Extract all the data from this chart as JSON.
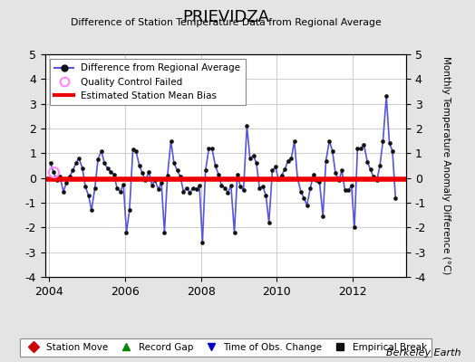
{
  "title": "PRIEVIDZA",
  "subtitle": "Difference of Station Temperature Data from Regional Average",
  "ylabel": "Monthly Temperature Anomaly Difference (°C)",
  "credit": "Berkeley Earth",
  "ylim": [
    -4,
    5
  ],
  "xlim": [
    2003.9,
    2013.4
  ],
  "yticks": [
    -4,
    -3,
    -2,
    -1,
    0,
    1,
    2,
    3,
    4,
    5
  ],
  "xticks": [
    2004,
    2006,
    2008,
    2010,
    2012
  ],
  "bias_value": -0.05,
  "line_color": "#5555dd",
  "marker_color": "#111111",
  "bias_color": "#ee0000",
  "qc_color": "#ff88ff",
  "background_color": "#e4e4e4",
  "plot_bg_color": "#ffffff",
  "grid_color": "#cccccc",
  "data": [
    [
      2004.04,
      0.6
    ],
    [
      2004.12,
      0.25
    ],
    [
      2004.21,
      -0.1
    ],
    [
      2004.29,
      0.05
    ],
    [
      2004.38,
      -0.55
    ],
    [
      2004.46,
      -0.2
    ],
    [
      2004.54,
      0.05
    ],
    [
      2004.63,
      0.3
    ],
    [
      2004.71,
      0.6
    ],
    [
      2004.79,
      0.8
    ],
    [
      2004.88,
      0.4
    ],
    [
      2004.96,
      -0.35
    ],
    [
      2005.04,
      -0.7
    ],
    [
      2005.12,
      -1.3
    ],
    [
      2005.21,
      -0.4
    ],
    [
      2005.29,
      0.75
    ],
    [
      2005.38,
      1.1
    ],
    [
      2005.46,
      0.6
    ],
    [
      2005.54,
      0.4
    ],
    [
      2005.63,
      0.25
    ],
    [
      2005.71,
      0.15
    ],
    [
      2005.79,
      -0.4
    ],
    [
      2005.88,
      -0.55
    ],
    [
      2005.96,
      -0.25
    ],
    [
      2006.04,
      -2.2
    ],
    [
      2006.12,
      -1.3
    ],
    [
      2006.21,
      1.15
    ],
    [
      2006.29,
      1.1
    ],
    [
      2006.38,
      0.5
    ],
    [
      2006.46,
      0.2
    ],
    [
      2006.54,
      -0.1
    ],
    [
      2006.63,
      0.25
    ],
    [
      2006.71,
      -0.3
    ],
    [
      2006.79,
      -0.1
    ],
    [
      2006.88,
      -0.45
    ],
    [
      2006.96,
      -0.2
    ],
    [
      2007.04,
      -2.2
    ],
    [
      2007.12,
      0.1
    ],
    [
      2007.21,
      1.5
    ],
    [
      2007.29,
      0.6
    ],
    [
      2007.38,
      0.3
    ],
    [
      2007.46,
      0.05
    ],
    [
      2007.54,
      -0.55
    ],
    [
      2007.63,
      -0.4
    ],
    [
      2007.71,
      -0.6
    ],
    [
      2007.79,
      -0.4
    ],
    [
      2007.88,
      -0.45
    ],
    [
      2007.96,
      -0.3
    ],
    [
      2008.04,
      -2.6
    ],
    [
      2008.12,
      0.3
    ],
    [
      2008.21,
      1.2
    ],
    [
      2008.29,
      1.2
    ],
    [
      2008.38,
      0.5
    ],
    [
      2008.46,
      0.15
    ],
    [
      2008.54,
      -0.3
    ],
    [
      2008.63,
      -0.4
    ],
    [
      2008.71,
      -0.6
    ],
    [
      2008.79,
      -0.3
    ],
    [
      2008.88,
      -2.2
    ],
    [
      2008.96,
      0.15
    ],
    [
      2009.04,
      -0.35
    ],
    [
      2009.12,
      -0.5
    ],
    [
      2009.21,
      2.1
    ],
    [
      2009.29,
      0.8
    ],
    [
      2009.38,
      0.9
    ],
    [
      2009.46,
      0.6
    ],
    [
      2009.54,
      -0.4
    ],
    [
      2009.63,
      -0.35
    ],
    [
      2009.71,
      -0.7
    ],
    [
      2009.79,
      -1.8
    ],
    [
      2009.88,
      0.3
    ],
    [
      2009.96,
      0.45
    ],
    [
      2010.04,
      -0.05
    ],
    [
      2010.12,
      0.1
    ],
    [
      2010.21,
      0.35
    ],
    [
      2010.29,
      0.7
    ],
    [
      2010.38,
      0.8
    ],
    [
      2010.46,
      1.5
    ],
    [
      2010.54,
      0.0
    ],
    [
      2010.63,
      -0.55
    ],
    [
      2010.71,
      -0.8
    ],
    [
      2010.79,
      -1.1
    ],
    [
      2010.88,
      -0.4
    ],
    [
      2010.96,
      0.15
    ],
    [
      2011.04,
      -0.1
    ],
    [
      2011.12,
      -0.15
    ],
    [
      2011.21,
      -1.55
    ],
    [
      2011.29,
      0.7
    ],
    [
      2011.38,
      1.5
    ],
    [
      2011.46,
      1.1
    ],
    [
      2011.54,
      0.2
    ],
    [
      2011.63,
      -0.1
    ],
    [
      2011.71,
      0.3
    ],
    [
      2011.79,
      -0.5
    ],
    [
      2011.88,
      -0.5
    ],
    [
      2011.96,
      -0.3
    ],
    [
      2012.04,
      -2.0
    ],
    [
      2012.12,
      1.2
    ],
    [
      2012.21,
      1.2
    ],
    [
      2012.29,
      1.35
    ],
    [
      2012.38,
      0.65
    ],
    [
      2012.46,
      0.35
    ],
    [
      2012.54,
      0.05
    ],
    [
      2012.63,
      -0.1
    ],
    [
      2012.71,
      0.5
    ],
    [
      2012.79,
      1.5
    ],
    [
      2012.88,
      3.3
    ],
    [
      2012.96,
      1.4
    ],
    [
      2013.04,
      1.1
    ],
    [
      2013.12,
      -0.8
    ]
  ],
  "qc_failed_points": [
    [
      2004.12,
      0.25
    ]
  ],
  "legend2_entries": [
    {
      "label": "Station Move",
      "color": "#cc0000",
      "marker": "D"
    },
    {
      "label": "Record Gap",
      "color": "#008800",
      "marker": "^"
    },
    {
      "label": "Time of Obs. Change",
      "color": "#0000cc",
      "marker": "v"
    },
    {
      "label": "Empirical Break",
      "color": "#111111",
      "marker": "s"
    }
  ]
}
